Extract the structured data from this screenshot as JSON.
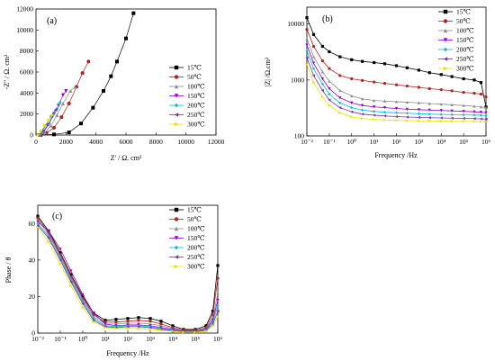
{
  "legend_labels": [
    "15℃",
    "50℃",
    "100℃",
    "150℃",
    "200℃",
    "250℃",
    "300℃"
  ],
  "series_colors": [
    "#000000",
    "#b22222",
    "#8c8c8c",
    "#9400d3",
    "#00bcd4",
    "#7b2fbe",
    "#e6e600"
  ],
  "series_markers": [
    "square",
    "circle",
    "triangle-up",
    "triangle-down",
    "diamond",
    "triangle-left",
    "triangle-right"
  ],
  "panel_a": {
    "label": "(a)",
    "xlabel": "Z' / Ω. cm²",
    "ylabel": "-Z'' / Ω. cm²"
  },
  "panel_b": {
    "label": "(b)",
    "xlabel": "Frequency /Hz",
    "ylabel": "|Z| /Ω.cm²"
  },
  "panel_c": {
    "label": "(c)",
    "xlabel": "Frequency /Hz",
    "ylabel": "Phase / θ"
  },
  "chart_data": [
    {
      "type": "scatter",
      "title": "(a)",
      "xlabel": "Z' / Ω. cm²",
      "ylabel": "-Z'' / Ω. cm²",
      "xlim": [
        0,
        12000
      ],
      "ylim": [
        0,
        12000
      ],
      "xticks": [
        0,
        2000,
        4000,
        6000,
        8000,
        10000,
        12000
      ],
      "yticks": [
        0,
        2000,
        4000,
        6000,
        8000,
        10000,
        12000
      ],
      "series": [
        {
          "name": "15℃",
          "points": [
            [
              300,
              0
            ],
            [
              1200,
              60
            ],
            [
              2200,
              250
            ],
            [
              3000,
              1100
            ],
            [
              3800,
              2600
            ],
            [
              4500,
              4200
            ],
            [
              5000,
              5600
            ],
            [
              5400,
              7000
            ],
            [
              6000,
              9200
            ],
            [
              6500,
              11600
            ]
          ]
        },
        {
          "name": "50℃",
          "points": [
            [
              300,
              0
            ],
            [
              700,
              200
            ],
            [
              1200,
              700
            ],
            [
              1700,
              1700
            ],
            [
              2200,
              3000
            ],
            [
              2700,
              4600
            ],
            [
              3100,
              5900
            ],
            [
              3500,
              7000
            ]
          ]
        },
        {
          "name": "100℃",
          "points": [
            [
              250,
              0
            ],
            [
              600,
              250
            ],
            [
              1000,
              900
            ],
            [
              1400,
              1900
            ],
            [
              1800,
              3000
            ],
            [
              2300,
              4200
            ],
            [
              2600,
              4600
            ]
          ]
        },
        {
          "name": "150℃",
          "points": [
            [
              200,
              0
            ],
            [
              500,
              300
            ],
            [
              850,
              1000
            ],
            [
              1200,
              2000
            ],
            [
              1500,
              2800
            ],
            [
              1800,
              3800
            ],
            [
              2000,
              4200
            ]
          ]
        },
        {
          "name": "200℃",
          "points": [
            [
              200,
              0
            ],
            [
              450,
              300
            ],
            [
              800,
              1000
            ],
            [
              1100,
              1800
            ],
            [
              1400,
              2500
            ],
            [
              1600,
              3100
            ]
          ]
        },
        {
          "name": "250℃",
          "points": [
            [
              150,
              0
            ],
            [
              400,
              400
            ],
            [
              700,
              1000
            ],
            [
              1000,
              1800
            ],
            [
              1300,
              2400
            ]
          ]
        },
        {
          "name": "300℃",
          "points": [
            [
              150,
              0
            ],
            [
              350,
              400
            ],
            [
              600,
              900
            ],
            [
              850,
              1400
            ],
            [
              1100,
              1900
            ]
          ]
        }
      ]
    },
    {
      "type": "line",
      "title": "(b)",
      "xlabel": "Frequency /Hz",
      "ylabel": "|Z| /Ω.cm²",
      "x_scale": "log",
      "y_scale": "log",
      "xlim": [
        0.01,
        1000000
      ],
      "ylim": [
        100,
        20000
      ],
      "xtick_labels": [
        "10⁻²",
        "10⁻¹",
        "10⁰",
        "10¹",
        "10²",
        "10³",
        "10⁴",
        "10⁵",
        "10⁶"
      ],
      "ytick_labels": [
        "100",
        "1000",
        "10000"
      ],
      "x": [
        0.01,
        0.02,
        0.05,
        0.1,
        0.3,
        1,
        3,
        10,
        30,
        100,
        300,
        1000,
        3000,
        10000,
        30000,
        100000,
        300000,
        600000,
        1000000
      ],
      "series": [
        {
          "name": "15℃",
          "values": [
            13000,
            6500,
            4000,
            3200,
            2600,
            2300,
            2150,
            2050,
            1950,
            1800,
            1650,
            1500,
            1350,
            1250,
            1150,
            1050,
            1000,
            900,
            330
          ]
        },
        {
          "name": "50℃",
          "values": [
            8000,
            4000,
            2200,
            1600,
            1200,
            1050,
            980,
            920,
            870,
            820,
            780,
            740,
            700,
            670,
            640,
            600,
            580,
            560,
            500
          ]
        },
        {
          "name": "100℃",
          "values": [
            5500,
            2600,
            1400,
            950,
            650,
            520,
            460,
            430,
            420,
            410,
            400,
            390,
            380,
            370,
            360,
            350,
            340,
            330,
            320
          ]
        },
        {
          "name": "150℃",
          "values": [
            4200,
            2000,
            1050,
            700,
            480,
            390,
            350,
            330,
            320,
            310,
            300,
            295,
            290,
            285,
            280,
            275,
            270,
            265,
            260
          ]
        },
        {
          "name": "200℃",
          "values": [
            3300,
            1600,
            850,
            560,
            390,
            320,
            290,
            275,
            265,
            260,
            255,
            250,
            245,
            242,
            240,
            238,
            236,
            234,
            232
          ]
        },
        {
          "name": "250℃",
          "values": [
            2500,
            1200,
            650,
            440,
            320,
            270,
            245,
            235,
            228,
            222,
            218,
            215,
            212,
            210,
            208,
            206,
            204,
            202,
            200
          ]
        },
        {
          "name": "300℃",
          "values": [
            1900,
            900,
            500,
            350,
            260,
            220,
            205,
            198,
            193,
            190,
            188,
            186,
            185,
            184,
            183,
            182,
            181,
            180,
            180
          ]
        }
      ]
    },
    {
      "type": "line",
      "title": "(c)",
      "xlabel": "Frequency /Hz",
      "ylabel": "Phase / θ",
      "x_scale": "log",
      "xlim": [
        0.01,
        1000000
      ],
      "ylim": [
        0,
        70
      ],
      "xtick_labels": [
        "10⁻²",
        "10⁻¹",
        "10⁰",
        "10¹",
        "10²",
        "10³",
        "10⁴",
        "10⁵",
        "10⁶"
      ],
      "ytick_labels": [
        "0",
        "20",
        "40",
        "60"
      ],
      "x": [
        0.01,
        0.03,
        0.1,
        0.3,
        1,
        3,
        10,
        30,
        100,
        300,
        1000,
        3000,
        10000,
        30000,
        100000,
        300000,
        600000,
        1000000
      ],
      "series": [
        {
          "name": "15℃",
          "values": [
            64,
            56,
            44,
            32,
            20,
            11,
            7,
            7.5,
            8,
            8.5,
            8,
            6.5,
            4,
            2,
            2,
            4,
            12,
            37
          ]
        },
        {
          "name": "50℃",
          "values": [
            63,
            55,
            43,
            31,
            19,
            10,
            6,
            6,
            6.5,
            7,
            6.5,
            5,
            3,
            1.5,
            1.5,
            3,
            10,
            30
          ]
        },
        {
          "name": "100℃",
          "values": [
            62,
            54,
            42,
            30,
            18,
            9,
            5,
            5,
            5.5,
            5.5,
            5,
            4,
            2.5,
            1,
            1,
            2.5,
            8,
            22
          ]
        },
        {
          "name": "150℃",
          "values": [
            61,
            56,
            46,
            34,
            21,
            11,
            5,
            4,
            4.5,
            4.5,
            4,
            3,
            2,
            1,
            1,
            2,
            7,
            18
          ]
        },
        {
          "name": "200℃",
          "values": [
            60,
            53,
            41,
            29,
            17,
            8,
            4,
            3.5,
            4,
            4,
            3.5,
            2.5,
            1.5,
            0.8,
            0.8,
            1.8,
            6,
            15
          ]
        },
        {
          "name": "250℃",
          "values": [
            59,
            52,
            40,
            28,
            16,
            7,
            3.5,
            3,
            3.5,
            3.5,
            3,
            2,
            1.2,
            0.6,
            0.6,
            1.5,
            5,
            12
          ]
        },
        {
          "name": "300℃",
          "values": [
            58,
            50,
            38,
            26,
            14,
            6,
            3,
            2.5,
            2.5,
            2.5,
            2,
            1.5,
            1,
            0.5,
            0.5,
            1,
            4,
            9
          ]
        }
      ]
    }
  ]
}
